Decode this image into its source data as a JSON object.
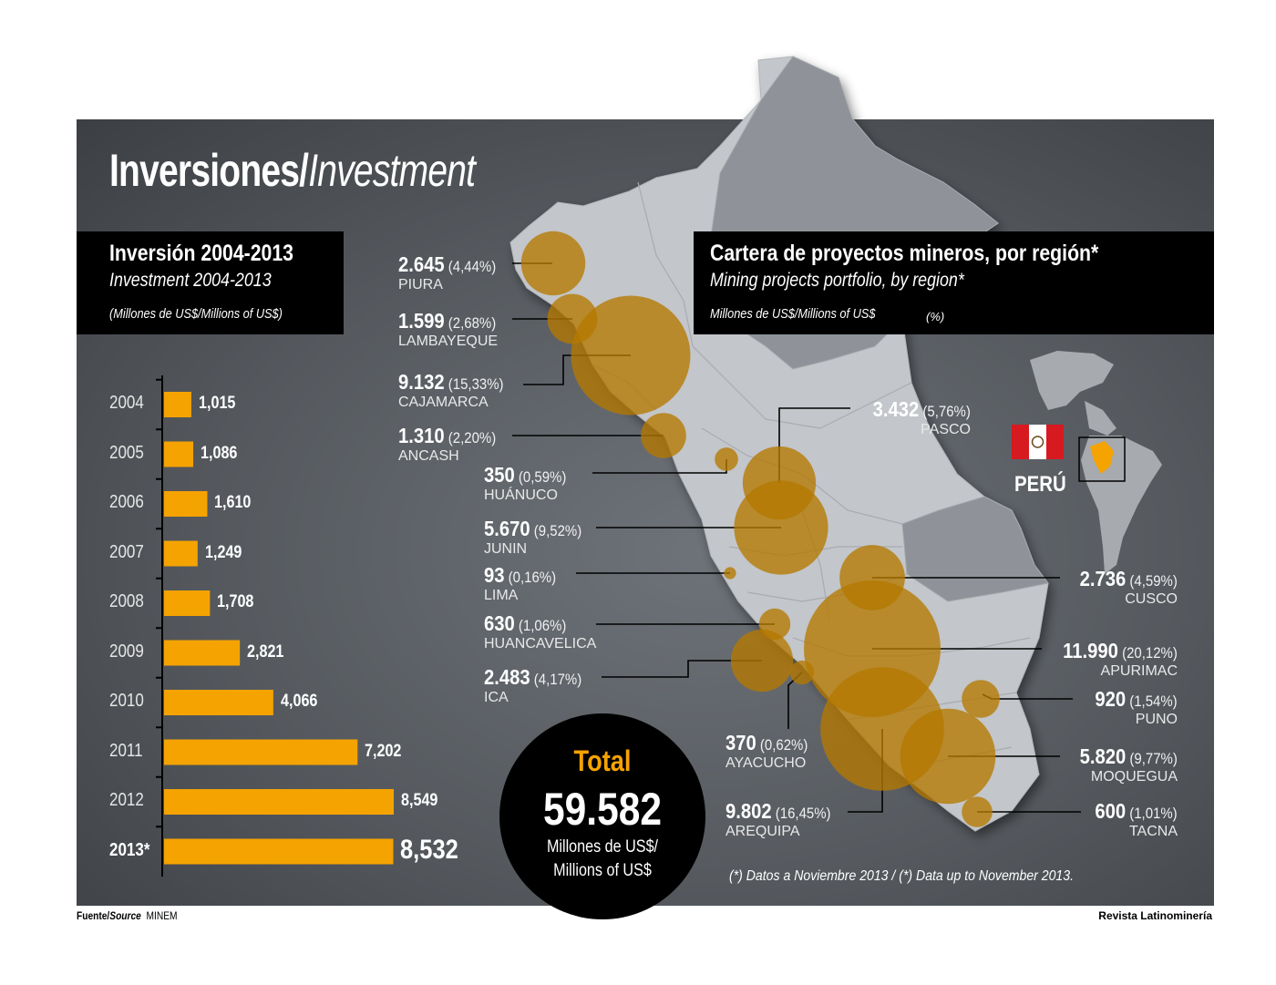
{
  "title": {
    "main": "Inversiones/",
    "italic": "Investment"
  },
  "investment_box": {
    "title": "Inversión 2004-2013",
    "subtitle": "Investment 2004-2013",
    "units": "(Millones de US$/Millions of US$)"
  },
  "portfolio_box": {
    "title": "Cartera de proyectos mineros, por región*",
    "subtitle": "Mining projects portfolio, by region*",
    "units": "Millones de US$/Millions of US$",
    "pct_label": "(%)"
  },
  "chart_data": [
    {
      "type": "bar",
      "orientation": "horizontal",
      "title": "Inversión 2004-2013",
      "subtitle": "Investment 2004-2013",
      "units": "(Millones de US$/Millions of US$)",
      "categories": [
        "2004",
        "2005",
        "2006",
        "2007",
        "2008",
        "2009",
        "2010",
        "2011",
        "2012",
        "2013*"
      ],
      "values": [
        1015,
        1086,
        1610,
        1249,
        1708,
        2821,
        4066,
        7202,
        8549,
        8532
      ],
      "value_labels": [
        "1,015",
        "1,086",
        "1,610",
        "1,249",
        "1,708",
        "2,821",
        "4,066",
        "7,202",
        "8,549",
        "8,532"
      ],
      "bar_color": "#f5a300",
      "xlim": [
        0,
        8549
      ]
    },
    {
      "type": "bubble-map",
      "title": "Cartera de proyectos mineros, por región*",
      "subtitle": "Mining projects portfolio, by region*",
      "units": "Millones de US$/Millions of US$",
      "regions": [
        {
          "name": "PIURA",
          "value": 2645,
          "value_label": "2.645",
          "pct": "(4,44%)"
        },
        {
          "name": "LAMBAYEQUE",
          "value": 1599,
          "value_label": "1.599",
          "pct": "(2,68%)"
        },
        {
          "name": "CAJAMARCA",
          "value": 9132,
          "value_label": "9.132",
          "pct": "(15,33%)"
        },
        {
          "name": "ANCASH",
          "value": 1310,
          "value_label": "1.310",
          "pct": "(2,20%)"
        },
        {
          "name": "HUÁNUCO",
          "value": 350,
          "value_label": "350",
          "pct": "(0,59%)"
        },
        {
          "name": "JUNIN",
          "value": 5670,
          "value_label": "5.670",
          "pct": "(9,52%)"
        },
        {
          "name": "LIMA",
          "value": 93,
          "value_label": "93",
          "pct": "(0,16%)"
        },
        {
          "name": "HUANCAVELICA",
          "value": 630,
          "value_label": "630",
          "pct": "(1,06%)"
        },
        {
          "name": "ICA",
          "value": 2483,
          "value_label": "2.483",
          "pct": "(4,17%)"
        },
        {
          "name": "PASCO",
          "value": 3432,
          "value_label": "3.432",
          "pct": "(5,76%)"
        },
        {
          "name": "CUSCO",
          "value": 2736,
          "value_label": "2.736",
          "pct": "(4,59%)"
        },
        {
          "name": "APURIMAC",
          "value": 11990,
          "value_label": "11.990",
          "pct": "(20,12%)"
        },
        {
          "name": "PUNO",
          "value": 920,
          "value_label": "920",
          "pct": "(1,54%)"
        },
        {
          "name": "AYACUCHO",
          "value": 370,
          "value_label": "370",
          "pct": "(0,62%)"
        },
        {
          "name": "MOQUEGUA",
          "value": 5820,
          "value_label": "5.820",
          "pct": "(9,77%)"
        },
        {
          "name": "AREQUIPA",
          "value": 9802,
          "value_label": "9.802",
          "pct": "(16,45%)"
        },
        {
          "name": "TACNA",
          "value": 600,
          "value_label": "600",
          "pct": "(1,01%)"
        }
      ],
      "total": {
        "label": "Total",
        "value": "59.582",
        "units_line1": "Millones de US$/",
        "units_line2": "Millions of US$"
      },
      "bubble_color": "#b57800"
    }
  ],
  "country_label": "PERÚ",
  "note": "(*) Datos a Noviembre 2013 / (*) Data up to November 2013.",
  "footer": {
    "source_label": "Fuente/",
    "source_italic": "Source",
    "source_value": "MINEM",
    "credit": "Revista Latinominería"
  },
  "colors": {
    "accent": "#f5a300",
    "panel": "#55595e",
    "map_light": "#c3c6ca",
    "map_dark": "#8f9399"
  }
}
